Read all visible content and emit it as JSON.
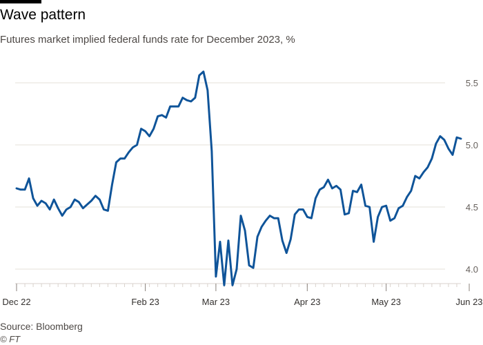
{
  "title": "Wave pattern",
  "subtitle": "Futures market implied federal funds rate for December 2023, %",
  "source": "Source: Bloomberg",
  "credit": "© FT",
  "chart_data": {
    "type": "line",
    "title": "Wave pattern",
    "subtitle": "Futures market implied federal funds rate for December 2023, %",
    "xlabel": "",
    "ylabel": "",
    "ylim": [
      3.88,
      5.62
    ],
    "y_ticks": [
      4.0,
      4.5,
      5.0,
      5.5
    ],
    "y_tick_labels": [
      "4.0",
      "4.5",
      "5.0",
      "5.5"
    ],
    "x_tick_labels": [
      "Dec 22",
      "Feb 23",
      "Mar 23",
      "Apr 23",
      "May 23",
      "Jun 23"
    ],
    "x_tick_positions": [
      0,
      31,
      48,
      70,
      89,
      109
    ],
    "grid": true,
    "legend": "none",
    "line_color": "#0f5499",
    "series": [
      {
        "values": [
          4.65,
          4.64,
          4.64,
          4.73,
          4.57,
          4.51,
          4.55,
          4.53,
          4.48,
          4.56,
          4.49,
          4.43,
          4.48,
          4.5,
          4.56,
          4.54,
          4.49,
          4.52,
          4.55,
          4.59,
          4.56,
          4.48,
          4.47,
          4.68,
          4.86,
          4.89,
          4.89,
          4.94,
          4.98,
          5.0,
          5.13,
          5.11,
          5.07,
          5.13,
          5.23,
          5.24,
          5.22,
          5.31,
          5.31,
          5.31,
          5.38,
          5.36,
          5.35,
          5.38,
          5.56,
          5.59,
          5.44,
          4.95,
          3.94,
          4.22,
          3.87,
          4.23,
          3.87,
          4.0,
          4.43,
          4.31,
          4.03,
          4.01,
          4.26,
          4.34,
          4.39,
          4.43,
          4.41,
          4.41,
          4.23,
          4.13,
          4.24,
          4.44,
          4.48,
          4.48,
          4.42,
          4.41,
          4.57,
          4.64,
          4.66,
          4.72,
          4.65,
          4.67,
          4.64,
          4.44,
          4.45,
          4.63,
          4.62,
          4.68,
          4.51,
          4.5,
          4.22,
          4.42,
          4.5,
          4.51,
          4.39,
          4.41,
          4.49,
          4.51,
          4.58,
          4.63,
          4.75,
          4.73,
          4.78,
          4.82,
          4.89,
          5.01,
          5.07,
          5.04,
          4.97,
          4.92,
          5.06,
          5.05
        ]
      }
    ]
  }
}
